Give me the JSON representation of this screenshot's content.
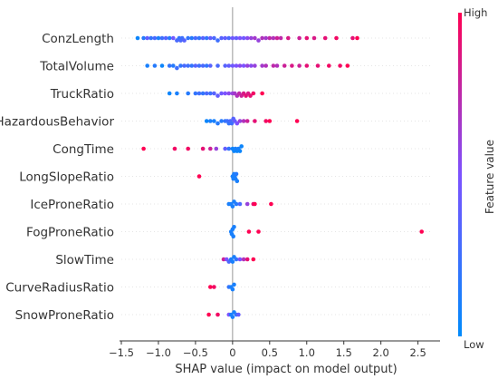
{
  "chart_data": {
    "type": "scatter",
    "subtype": "shap-beeswarm",
    "title": "",
    "xlabel": "SHAP value (impact on model output)",
    "ylabel": "",
    "xlim": [
      -1.5,
      2.7
    ],
    "xticks": [
      -1.5,
      -1.0,
      -0.5,
      0,
      0.5,
      1.0,
      1.5,
      2.0,
      2.5
    ],
    "xtick_labels": [
      "−1.5",
      "−1.0",
      "−0.5",
      "0",
      "0.5",
      "1.0",
      "1.5",
      "2.0",
      "2.5"
    ],
    "grid": false,
    "zero_line": true,
    "colorbar": {
      "title": "Feature value",
      "high_label": "High",
      "low_label": "Low",
      "low_color": "#008bfb",
      "mid_color": "#7c52ff",
      "high_color": "#ff0052"
    },
    "features": [
      {
        "name": "ConzLength",
        "points": [
          [
            -1.28,
            0.05
          ],
          [
            -1.2,
            0.15
          ],
          [
            -1.15,
            0.4
          ],
          [
            -1.1,
            0.2
          ],
          [
            -1.05,
            0.3
          ],
          [
            -1.0,
            0.1
          ],
          [
            -0.95,
            0.25
          ],
          [
            -0.9,
            0.35
          ],
          [
            -0.85,
            0.15
          ],
          [
            -0.8,
            0.45
          ],
          [
            -0.75,
            0.3
          ],
          [
            -0.72,
            0.2
          ],
          [
            -0.7,
            0.3
          ],
          [
            -0.68,
            0.25
          ],
          [
            -0.65,
            0.35
          ],
          [
            -0.6,
            0.2
          ],
          [
            -0.55,
            0.15
          ],
          [
            -0.5,
            0.3
          ],
          [
            -0.45,
            0.2
          ],
          [
            -0.4,
            0.35
          ],
          [
            -0.35,
            0.2
          ],
          [
            -0.3,
            0.4
          ],
          [
            -0.25,
            0.3
          ],
          [
            -0.2,
            0.25
          ],
          [
            -0.15,
            0.35
          ],
          [
            -0.1,
            0.4
          ],
          [
            -0.05,
            0.3
          ],
          [
            0.0,
            0.45
          ],
          [
            0.05,
            0.4
          ],
          [
            0.1,
            0.5
          ],
          [
            0.15,
            0.45
          ],
          [
            0.2,
            0.55
          ],
          [
            0.25,
            0.6
          ],
          [
            0.3,
            0.65
          ],
          [
            0.35,
            0.6
          ],
          [
            0.4,
            0.7
          ],
          [
            0.45,
            0.65
          ],
          [
            0.5,
            0.75
          ],
          [
            0.55,
            0.7
          ],
          [
            0.6,
            0.8
          ],
          [
            0.65,
            0.75
          ],
          [
            0.75,
            0.85
          ],
          [
            0.9,
            0.8
          ],
          [
            1.0,
            0.9
          ],
          [
            1.1,
            0.85
          ],
          [
            1.25,
            0.9
          ],
          [
            1.4,
            0.95
          ],
          [
            1.62,
            0.9
          ],
          [
            1.68,
            1.0
          ]
        ]
      },
      {
        "name": "TotalVolume",
        "points": [
          [
            -1.15,
            0.1
          ],
          [
            -1.05,
            0.15
          ],
          [
            -0.95,
            0.05
          ],
          [
            -0.85,
            0.2
          ],
          [
            -0.8,
            0.15
          ],
          [
            -0.75,
            0.25
          ],
          [
            -0.7,
            0.2
          ],
          [
            -0.65,
            0.3
          ],
          [
            -0.6,
            0.25
          ],
          [
            -0.55,
            0.2
          ],
          [
            -0.5,
            0.35
          ],
          [
            -0.45,
            0.25
          ],
          [
            -0.4,
            0.3
          ],
          [
            -0.35,
            0.2
          ],
          [
            -0.3,
            0.35
          ],
          [
            -0.2,
            0.3
          ],
          [
            -0.1,
            0.35
          ],
          [
            -0.05,
            0.4
          ],
          [
            0.0,
            0.45
          ],
          [
            0.05,
            0.5
          ],
          [
            0.1,
            0.55
          ],
          [
            0.15,
            0.5
          ],
          [
            0.2,
            0.6
          ],
          [
            0.25,
            0.55
          ],
          [
            0.3,
            0.6
          ],
          [
            0.4,
            0.65
          ],
          [
            0.45,
            0.7
          ],
          [
            0.55,
            0.75
          ],
          [
            0.6,
            0.7
          ],
          [
            0.7,
            0.8
          ],
          [
            0.8,
            0.85
          ],
          [
            0.9,
            0.8
          ],
          [
            1.0,
            0.9
          ],
          [
            1.15,
            0.9
          ],
          [
            1.3,
            0.95
          ],
          [
            1.45,
            0.95
          ],
          [
            1.55,
            1.0
          ]
        ]
      },
      {
        "name": "TruckRatio",
        "points": [
          [
            -0.85,
            0.05
          ],
          [
            -0.75,
            0.1
          ],
          [
            -0.6,
            0.15
          ],
          [
            -0.5,
            0.2
          ],
          [
            -0.45,
            0.25
          ],
          [
            -0.4,
            0.2
          ],
          [
            -0.35,
            0.3
          ],
          [
            -0.3,
            0.25
          ],
          [
            -0.25,
            0.35
          ],
          [
            -0.2,
            0.4
          ],
          [
            -0.15,
            0.45
          ],
          [
            -0.1,
            0.5
          ],
          [
            -0.05,
            0.55
          ],
          [
            0.0,
            0.6
          ],
          [
            0.03,
            0.65
          ],
          [
            0.06,
            0.7
          ],
          [
            0.09,
            0.75
          ],
          [
            0.12,
            0.8
          ],
          [
            0.15,
            0.85
          ],
          [
            0.18,
            0.9
          ],
          [
            0.21,
            0.85
          ],
          [
            0.24,
            0.9
          ],
          [
            0.28,
            0.95
          ],
          [
            0.4,
            1.0
          ]
        ]
      },
      {
        "name": "HazardousBehavior",
        "points": [
          [
            -0.35,
            0.05
          ],
          [
            -0.3,
            0.1
          ],
          [
            -0.25,
            0.1
          ],
          [
            -0.2,
            0.15
          ],
          [
            -0.15,
            0.15
          ],
          [
            -0.1,
            0.2
          ],
          [
            -0.07,
            0.25
          ],
          [
            -0.05,
            0.2
          ],
          [
            -0.03,
            0.3
          ],
          [
            -0.01,
            0.25
          ],
          [
            0.01,
            0.35
          ],
          [
            0.03,
            0.4
          ],
          [
            0.06,
            0.5
          ],
          [
            0.1,
            0.6
          ],
          [
            0.15,
            0.7
          ],
          [
            0.2,
            0.8
          ],
          [
            0.3,
            0.9
          ],
          [
            0.45,
            0.95
          ],
          [
            0.5,
            1.0
          ],
          [
            0.87,
            1.0
          ]
        ]
      },
      {
        "name": "CongTime",
        "points": [
          [
            -1.2,
            1.0
          ],
          [
            -0.78,
            0.95
          ],
          [
            -0.6,
            0.95
          ],
          [
            -0.4,
            0.9
          ],
          [
            -0.3,
            0.8
          ],
          [
            -0.22,
            0.6
          ],
          [
            -0.1,
            0.4
          ],
          [
            -0.05,
            0.2
          ],
          [
            0.0,
            0.05
          ],
          [
            0.02,
            0.05
          ],
          [
            0.04,
            0.1
          ],
          [
            0.06,
            0.05
          ],
          [
            0.08,
            0.1
          ],
          [
            0.1,
            0.05
          ],
          [
            0.12,
            0.05
          ]
        ]
      },
      {
        "name": "LongSlopeRatio",
        "points": [
          [
            -0.45,
            1.0
          ],
          [
            0.0,
            0.1
          ],
          [
            0.01,
            0.1
          ],
          [
            0.02,
            0.1
          ],
          [
            0.03,
            0.1
          ],
          [
            0.04,
            0.1
          ],
          [
            0.05,
            0.15
          ],
          [
            0.06,
            0.1
          ]
        ]
      },
      {
        "name": "IceProneRatio",
        "points": [
          [
            -0.05,
            0.1
          ],
          [
            -0.02,
            0.1
          ],
          [
            0.0,
            0.1
          ],
          [
            0.02,
            0.1
          ],
          [
            0.05,
            0.15
          ],
          [
            0.1,
            0.3
          ],
          [
            0.2,
            0.6
          ],
          [
            0.28,
            0.9
          ],
          [
            0.3,
            1.0
          ],
          [
            0.52,
            1.0
          ]
        ]
      },
      {
        "name": "FogProneRatio",
        "points": [
          [
            -0.02,
            0.1
          ],
          [
            -0.01,
            0.1
          ],
          [
            0.0,
            0.1
          ],
          [
            0.01,
            0.1
          ],
          [
            0.02,
            0.1
          ],
          [
            0.22,
            1.0
          ],
          [
            0.35,
            1.0
          ],
          [
            2.55,
            1.0
          ]
        ]
      },
      {
        "name": "SlowTime",
        "points": [
          [
            -0.12,
            0.8
          ],
          [
            -0.08,
            0.5
          ],
          [
            -0.05,
            0.3
          ],
          [
            -0.02,
            0.1
          ],
          [
            0.0,
            0.1
          ],
          [
            0.02,
            0.1
          ],
          [
            0.05,
            0.2
          ],
          [
            0.1,
            0.5
          ],
          [
            0.15,
            0.7
          ],
          [
            0.2,
            0.9
          ],
          [
            0.28,
            1.0
          ]
        ]
      },
      {
        "name": "CurveRadiusRatio",
        "points": [
          [
            -0.3,
            1.0
          ],
          [
            -0.25,
            0.95
          ],
          [
            -0.05,
            0.2
          ],
          [
            -0.02,
            0.1
          ],
          [
            0.0,
            0.1
          ],
          [
            0.02,
            0.1
          ]
        ]
      },
      {
        "name": "SnowProneRatio",
        "points": [
          [
            -0.32,
            1.0
          ],
          [
            -0.2,
            0.95
          ],
          [
            -0.05,
            0.5
          ],
          [
            -0.02,
            0.1
          ],
          [
            0.0,
            0.1
          ],
          [
            0.02,
            0.1
          ],
          [
            0.05,
            0.2
          ],
          [
            0.08,
            0.4
          ]
        ]
      }
    ]
  }
}
